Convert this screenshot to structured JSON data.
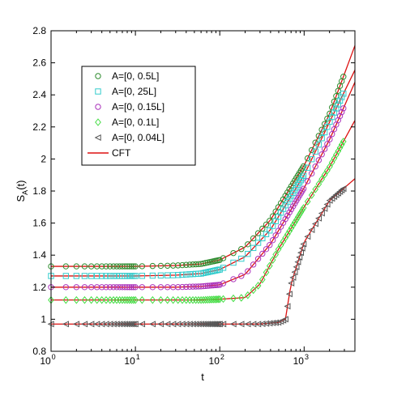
{
  "chart_data": {
    "type": "scatter",
    "xscale": "log",
    "xlim": [
      1,
      4000
    ],
    "ylim": [
      0.8,
      2.8
    ],
    "xlabel": "t",
    "ylabel": "S_A(t)",
    "grid": false,
    "legend_position": "top-left",
    "x_ticks": [
      {
        "value": 1,
        "base": "10",
        "exp": "0"
      },
      {
        "value": 10,
        "base": "10",
        "exp": "1"
      },
      {
        "value": 100,
        "base": "10",
        "exp": "2"
      },
      {
        "value": 1000,
        "base": "10",
        "exp": "3"
      }
    ],
    "y_ticks": [
      "0.8",
      "1",
      "1.2",
      "1.4",
      "1.6",
      "1.8",
      "2",
      "2.2",
      "2.4",
      "2.6",
      "2.8"
    ],
    "series": [
      {
        "name": "A=[0, 0.5L]",
        "marker": "circle",
        "color": "#2e8b2e",
        "points": [
          [
            1,
            1.33
          ],
          [
            10,
            1.33
          ],
          [
            30,
            1.335
          ],
          [
            60,
            1.345
          ],
          [
            100,
            1.37
          ],
          [
            200,
            1.45
          ],
          [
            400,
            1.62
          ],
          [
            1000,
            1.96
          ],
          [
            2000,
            2.28
          ],
          [
            3000,
            2.53
          ]
        ]
      },
      {
        "name": "A=[0, 25L]",
        "marker": "square",
        "color": "#33cccc",
        "points": [
          [
            1,
            1.27
          ],
          [
            10,
            1.27
          ],
          [
            30,
            1.275
          ],
          [
            60,
            1.285
          ],
          [
            100,
            1.31
          ],
          [
            200,
            1.39
          ],
          [
            400,
            1.56
          ],
          [
            1000,
            1.9
          ],
          [
            2000,
            2.23
          ],
          [
            3000,
            2.42
          ]
        ]
      },
      {
        "name": "A=[0, 0.15L]",
        "marker": "circle",
        "color": "#aa33bb",
        "points": [
          [
            1,
            1.2
          ],
          [
            10,
            1.2
          ],
          [
            30,
            1.2
          ],
          [
            60,
            1.205
          ],
          [
            100,
            1.215
          ],
          [
            200,
            1.28
          ],
          [
            400,
            1.47
          ],
          [
            1000,
            1.82
          ],
          [
            2000,
            2.12
          ],
          [
            3000,
            2.33
          ]
        ]
      },
      {
        "name": "A=[0, 0.1L]",
        "marker": "diamond",
        "color": "#44dd44",
        "points": [
          [
            1,
            1.12
          ],
          [
            10,
            1.12
          ],
          [
            60,
            1.12
          ],
          [
            100,
            1.125
          ],
          [
            200,
            1.135
          ],
          [
            300,
            1.22
          ],
          [
            500,
            1.44
          ],
          [
            1000,
            1.7
          ],
          [
            2000,
            1.95
          ],
          [
            3000,
            2.12
          ]
        ]
      },
      {
        "name": "A=[0, 0.04L]",
        "marker": "triangle-left",
        "color": "#555555",
        "points": [
          [
            1,
            0.97
          ],
          [
            10,
            0.97
          ],
          [
            100,
            0.97
          ],
          [
            300,
            0.97
          ],
          [
            500,
            0.98
          ],
          [
            600,
            1.0
          ],
          [
            700,
            1.22
          ],
          [
            1000,
            1.48
          ],
          [
            2000,
            1.74
          ],
          [
            3000,
            1.82
          ]
        ]
      },
      {
        "name": "CFT",
        "marker": "line",
        "color": "#dd1111",
        "points": []
      }
    ]
  }
}
